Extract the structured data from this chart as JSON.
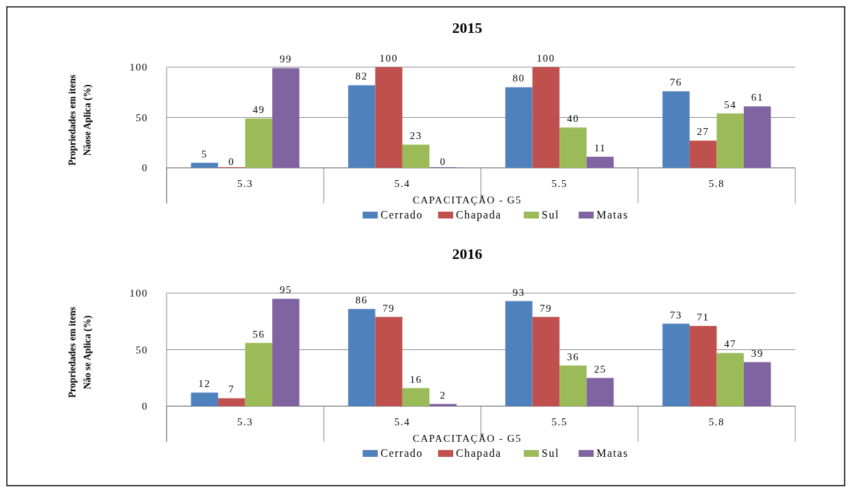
{
  "chart_data": [
    {
      "type": "bar",
      "title": "2015",
      "xlabel": "CAPACITAÇÃO - G5",
      "ylabel": "Propriedades em itens\nNãose Aplica (%)",
      "categories": [
        "5.3",
        "5.4",
        "5.5",
        "5.8"
      ],
      "series": [
        {
          "name": "Cerrado",
          "color": "#4f81bd",
          "values": [
            5,
            82,
            80,
            76
          ]
        },
        {
          "name": "Chapada",
          "color": "#c0504d",
          "values": [
            0,
            100,
            100,
            27
          ]
        },
        {
          "name": "Sul",
          "color": "#9bbb59",
          "values": [
            49,
            23,
            40,
            54
          ]
        },
        {
          "name": "Matas",
          "color": "#8064a2",
          "values": [
            99,
            0,
            11,
            61
          ]
        }
      ],
      "ylim": [
        0,
        100
      ],
      "yticks": [
        0,
        50,
        100
      ],
      "grid": "y",
      "legend": "bottom",
      "data_labels": true
    },
    {
      "type": "bar",
      "title": "2016",
      "xlabel": "CAPACITAÇÃO - G5",
      "ylabel": "Propriedades em itens\nNão se Aplica  (%)",
      "categories": [
        "5.3",
        "5.4",
        "5.5",
        "5.8"
      ],
      "series": [
        {
          "name": "Cerrado",
          "color": "#4f81bd",
          "values": [
            12,
            86,
            93,
            73
          ]
        },
        {
          "name": "Chapada",
          "color": "#c0504d",
          "values": [
            7,
            79,
            79,
            71
          ]
        },
        {
          "name": "Sul",
          "color": "#9bbb59",
          "values": [
            56,
            16,
            36,
            47
          ]
        },
        {
          "name": "Matas",
          "color": "#8064a2",
          "values": [
            95,
            2,
            25,
            39
          ]
        }
      ],
      "ylim": [
        0,
        100
      ],
      "yticks": [
        0,
        50,
        100
      ],
      "grid": "y",
      "legend": "bottom",
      "data_labels": true
    }
  ]
}
